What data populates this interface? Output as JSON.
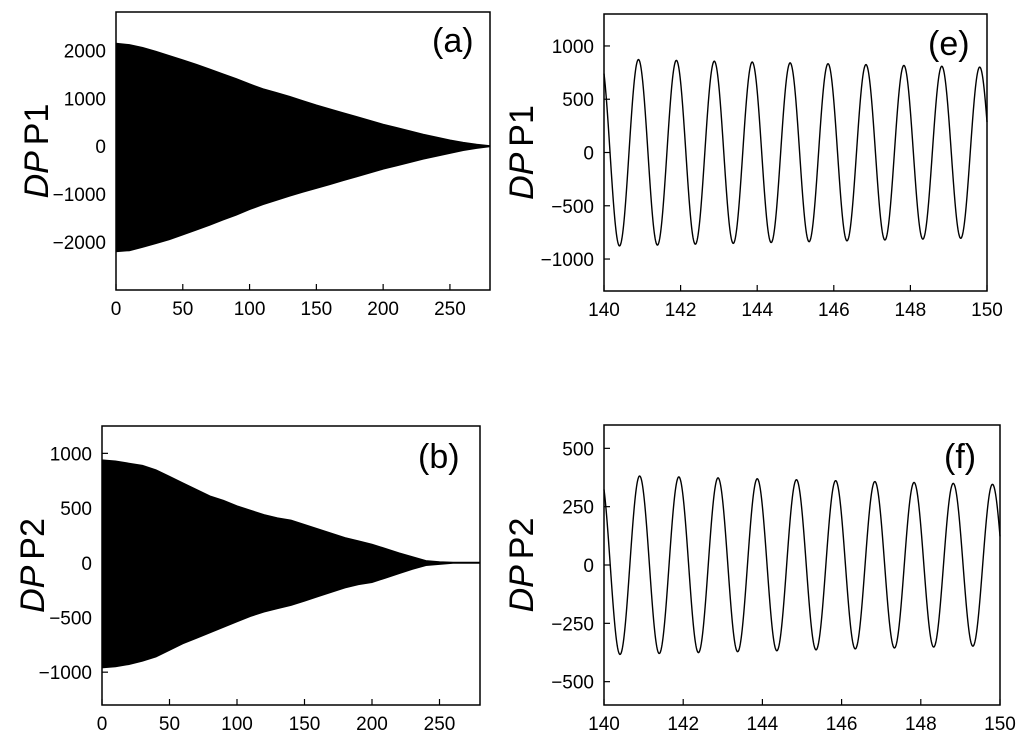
{
  "chart_data": [
    {
      "id": "a",
      "type": "area",
      "panel_label": "(a)",
      "ylabel_italic": "DP",
      "ylabel": "P1",
      "xlim": [
        0,
        280
      ],
      "ylim": [
        -3000,
        2800
      ],
      "xticks": [
        0,
        50,
        100,
        150,
        200,
        250
      ],
      "yticks": [
        -2000,
        -1000,
        0,
        1000,
        2000
      ],
      "series": [
        {
          "x": [
            0,
            10,
            20,
            30,
            40,
            50,
            60,
            70,
            80,
            90,
            100,
            110,
            120,
            130,
            140,
            150,
            160,
            170,
            180,
            190,
            200,
            210,
            220,
            230,
            240,
            250,
            260,
            270,
            280
          ],
          "upper": [
            2150,
            2120,
            2060,
            1980,
            1890,
            1800,
            1710,
            1610,
            1510,
            1410,
            1300,
            1200,
            1120,
            1040,
            950,
            860,
            780,
            700,
            620,
            540,
            460,
            390,
            320,
            250,
            190,
            130,
            80,
            40,
            10
          ],
          "lower": [
            -2200,
            -2180,
            -2110,
            -2030,
            -1950,
            -1850,
            -1750,
            -1650,
            -1540,
            -1440,
            -1320,
            -1220,
            -1130,
            -1040,
            -960,
            -880,
            -800,
            -720,
            -640,
            -560,
            -480,
            -410,
            -340,
            -270,
            -210,
            -150,
            -90,
            -45,
            -10
          ]
        }
      ]
    },
    {
      "id": "e",
      "type": "line",
      "panel_label": "(e)",
      "ylabel_italic": "DP",
      "ylabel": "P1",
      "xlim": [
        140,
        150
      ],
      "ylim": [
        -1300,
        1300
      ],
      "xticks": [
        140,
        142,
        144,
        146,
        148,
        150
      ],
      "yticks": [
        -1000,
        -500,
        0,
        500,
        1000
      ],
      "series": [
        {
          "start": 140.0,
          "end": 150.0,
          "amplitude_start": 880,
          "amplitude_end": 800,
          "period": 0.99,
          "first_peak": 140.9
        }
      ]
    },
    {
      "id": "b",
      "type": "area",
      "panel_label": "(b)",
      "ylabel_italic": "DP",
      "ylabel": "P2",
      "xlim": [
        0,
        280
      ],
      "ylim": [
        -1300,
        1250
      ],
      "xticks": [
        0,
        50,
        100,
        150,
        200,
        250
      ],
      "yticks": [
        -1000,
        -500,
        0,
        500,
        1000
      ],
      "series": [
        {
          "x": [
            0,
            10,
            20,
            30,
            40,
            50,
            60,
            70,
            80,
            90,
            100,
            110,
            120,
            130,
            140,
            150,
            160,
            170,
            180,
            190,
            200,
            210,
            220,
            230,
            240,
            250,
            260,
            270,
            280
          ],
          "upper": [
            940,
            930,
            910,
            890,
            850,
            790,
            730,
            670,
            610,
            570,
            520,
            480,
            440,
            410,
            390,
            350,
            310,
            270,
            230,
            200,
            170,
            130,
            90,
            55,
            20,
            10,
            5,
            5,
            5
          ],
          "lower": [
            -960,
            -950,
            -930,
            -900,
            -860,
            -800,
            -740,
            -690,
            -640,
            -590,
            -540,
            -490,
            -450,
            -420,
            -390,
            -350,
            -310,
            -270,
            -230,
            -200,
            -180,
            -140,
            -100,
            -60,
            -25,
            -15,
            -5,
            -5,
            -5
          ]
        }
      ]
    },
    {
      "id": "f",
      "type": "line",
      "panel_label": "(f)",
      "ylabel_italic": "DP",
      "ylabel": "P2",
      "xlim": [
        140,
        150
      ],
      "ylim": [
        -600,
        600
      ],
      "xticks": [
        140,
        142,
        144,
        146,
        148,
        150
      ],
      "yticks": [
        -500,
        -250,
        0,
        250,
        500
      ],
      "series": [
        {
          "start": 140.0,
          "end": 150.0,
          "amplitude_start": 385,
          "amplitude_end": 345,
          "period": 0.99,
          "first_peak": 140.9
        }
      ]
    }
  ]
}
